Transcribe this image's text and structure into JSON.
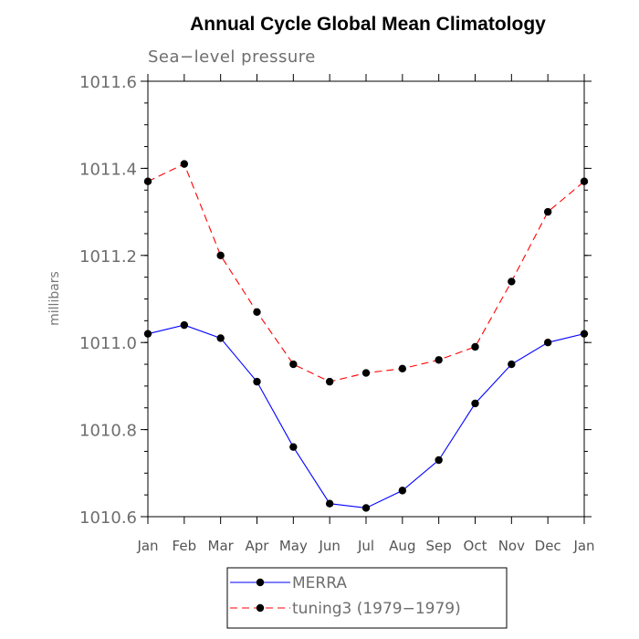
{
  "chart_data": {
    "type": "line",
    "title": "Annual Cycle Global Mean Climatology",
    "subtitle": "Sea−level pressure",
    "xlabel": "",
    "ylabel": "millibars",
    "categories": [
      "Jan",
      "Feb",
      "Mar",
      "Apr",
      "May",
      "Jun",
      "Jul",
      "Aug",
      "Sep",
      "Oct",
      "Nov",
      "Dec",
      "Jan"
    ],
    "ylim": [
      1010.6,
      1011.6
    ],
    "yticks": [
      "1010.6",
      "1010.8",
      "1011.0",
      "1011.2",
      "1011.4",
      "1011.6"
    ],
    "series": [
      {
        "name": "MERRA",
        "color": "#0000ff",
        "dash": "solid",
        "marker": "circle",
        "values": [
          1011.02,
          1011.04,
          1011.01,
          1010.91,
          1010.76,
          1010.63,
          1010.62,
          1010.66,
          1010.73,
          1010.86,
          1010.95,
          1011.0,
          1011.02
        ]
      },
      {
        "name": "tuning3 (1979−1979)",
        "color": "#ff0000",
        "dash": "dashed",
        "marker": "circle",
        "values": [
          1011.37,
          1011.41,
          1011.2,
          1011.07,
          1010.95,
          1010.91,
          1010.93,
          1010.94,
          1010.96,
          1010.99,
          1011.14,
          1011.3,
          1011.37
        ]
      }
    ],
    "grid": false,
    "legend_position": "bottom"
  }
}
